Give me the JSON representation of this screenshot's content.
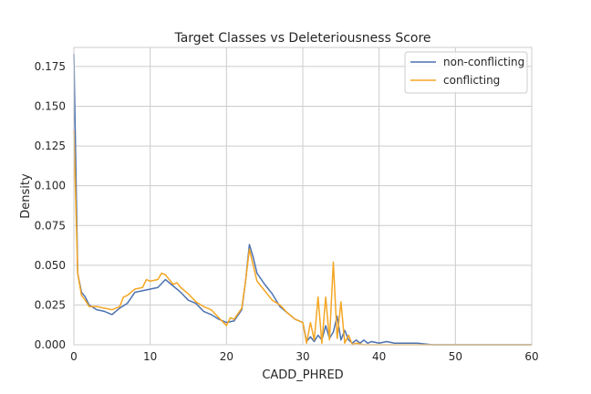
{
  "chart_data": {
    "type": "line",
    "title": "Target Classes vs Deleteriousness Score",
    "xlabel": "CADD_PHRED",
    "ylabel": "Density",
    "xlim": [
      0,
      60
    ],
    "ylim": [
      0,
      0.187
    ],
    "x_ticks": [
      0,
      10,
      20,
      30,
      40,
      50,
      60
    ],
    "x_tick_labels": [
      "0",
      "10",
      "20",
      "30",
      "40",
      "50",
      "60"
    ],
    "y_ticks": [
      0,
      0.025,
      0.05,
      0.075,
      0.1,
      0.125,
      0.15,
      0.175
    ],
    "y_tick_labels": [
      "0.000",
      "0.025",
      "0.050",
      "0.075",
      "0.100",
      "0.125",
      "0.150",
      "0.175"
    ],
    "grid": true,
    "legend_position": "top-right",
    "series": [
      {
        "name": "non-conflicting",
        "color": "#4c72b0",
        "points": [
          [
            0,
            0.183
          ],
          [
            0.5,
            0.045
          ],
          [
            1,
            0.033
          ],
          [
            1.5,
            0.03
          ],
          [
            2,
            0.025
          ],
          [
            3,
            0.022
          ],
          [
            4,
            0.021
          ],
          [
            5,
            0.019
          ],
          [
            6,
            0.023
          ],
          [
            7,
            0.026
          ],
          [
            8,
            0.033
          ],
          [
            9,
            0.034
          ],
          [
            10,
            0.035
          ],
          [
            11,
            0.036
          ],
          [
            12,
            0.041
          ],
          [
            13,
            0.037
          ],
          [
            14,
            0.033
          ],
          [
            15,
            0.028
          ],
          [
            16,
            0.026
          ],
          [
            17,
            0.021
          ],
          [
            18,
            0.019
          ],
          [
            19,
            0.016
          ],
          [
            20,
            0.014
          ],
          [
            21,
            0.015
          ],
          [
            22,
            0.022
          ],
          [
            22.5,
            0.04
          ],
          [
            23,
            0.063
          ],
          [
            23.5,
            0.055
          ],
          [
            24,
            0.045
          ],
          [
            25,
            0.038
          ],
          [
            26,
            0.032
          ],
          [
            27,
            0.024
          ],
          [
            28,
            0.02
          ],
          [
            29,
            0.016
          ],
          [
            30,
            0.014
          ],
          [
            30.5,
            0.002
          ],
          [
            31,
            0.005
          ],
          [
            31.5,
            0.002
          ],
          [
            32,
            0.006
          ],
          [
            32.5,
            0.003
          ],
          [
            33,
            0.012
          ],
          [
            33.5,
            0.004
          ],
          [
            34,
            0.008
          ],
          [
            34.5,
            0.018
          ],
          [
            35,
            0.003
          ],
          [
            35.5,
            0.009
          ],
          [
            36,
            0.003
          ],
          [
            36.5,
            0.001
          ],
          [
            37,
            0.003
          ],
          [
            37.5,
            0.001
          ],
          [
            38,
            0.003
          ],
          [
            38.5,
            0.001
          ],
          [
            39,
            0.002
          ],
          [
            40,
            0.001
          ],
          [
            41,
            0.002
          ],
          [
            42,
            0.001
          ],
          [
            43,
            0.001
          ],
          [
            45,
            0.001
          ],
          [
            47,
            0
          ],
          [
            50,
            0
          ],
          [
            55,
            0
          ],
          [
            60,
            0
          ]
        ]
      },
      {
        "name": "conflicting",
        "color": "#f5a623",
        "points": [
          [
            0,
            0.135
          ],
          [
            0.5,
            0.045
          ],
          [
            1,
            0.031
          ],
          [
            1.5,
            0.028
          ],
          [
            2,
            0.024
          ],
          [
            3,
            0.024
          ],
          [
            4,
            0.023
          ],
          [
            5,
            0.022
          ],
          [
            6,
            0.024
          ],
          [
            6.5,
            0.03
          ],
          [
            7,
            0.031
          ],
          [
            8,
            0.035
          ],
          [
            9,
            0.036
          ],
          [
            9.5,
            0.041
          ],
          [
            10,
            0.04
          ],
          [
            11,
            0.041
          ],
          [
            11.5,
            0.045
          ],
          [
            12,
            0.044
          ],
          [
            13,
            0.038
          ],
          [
            13.5,
            0.039
          ],
          [
            14,
            0.036
          ],
          [
            15,
            0.032
          ],
          [
            16,
            0.027
          ],
          [
            17,
            0.024
          ],
          [
            18,
            0.022
          ],
          [
            19,
            0.017
          ],
          [
            20,
            0.012
          ],
          [
            20.5,
            0.017
          ],
          [
            21,
            0.016
          ],
          [
            22,
            0.023
          ],
          [
            22.5,
            0.04
          ],
          [
            23,
            0.06
          ],
          [
            23.5,
            0.05
          ],
          [
            24,
            0.04
          ],
          [
            25,
            0.034
          ],
          [
            26,
            0.028
          ],
          [
            27,
            0.025
          ],
          [
            28,
            0.02
          ],
          [
            29,
            0.016
          ],
          [
            30,
            0.014
          ],
          [
            30.5,
            0.001
          ],
          [
            31,
            0.014
          ],
          [
            31.5,
            0.003
          ],
          [
            32,
            0.03
          ],
          [
            32.5,
            0.001
          ],
          [
            33,
            0.03
          ],
          [
            33.5,
            0.003
          ],
          [
            34,
            0.052
          ],
          [
            34.5,
            0.004
          ],
          [
            35,
            0.027
          ],
          [
            35.5,
            0.001
          ],
          [
            36,
            0.006
          ],
          [
            36.5,
            0
          ],
          [
            37,
            0.001
          ],
          [
            38,
            0
          ],
          [
            40,
            0
          ],
          [
            45,
            0
          ],
          [
            50,
            0
          ],
          [
            55,
            0
          ],
          [
            60,
            0
          ]
        ]
      }
    ]
  }
}
